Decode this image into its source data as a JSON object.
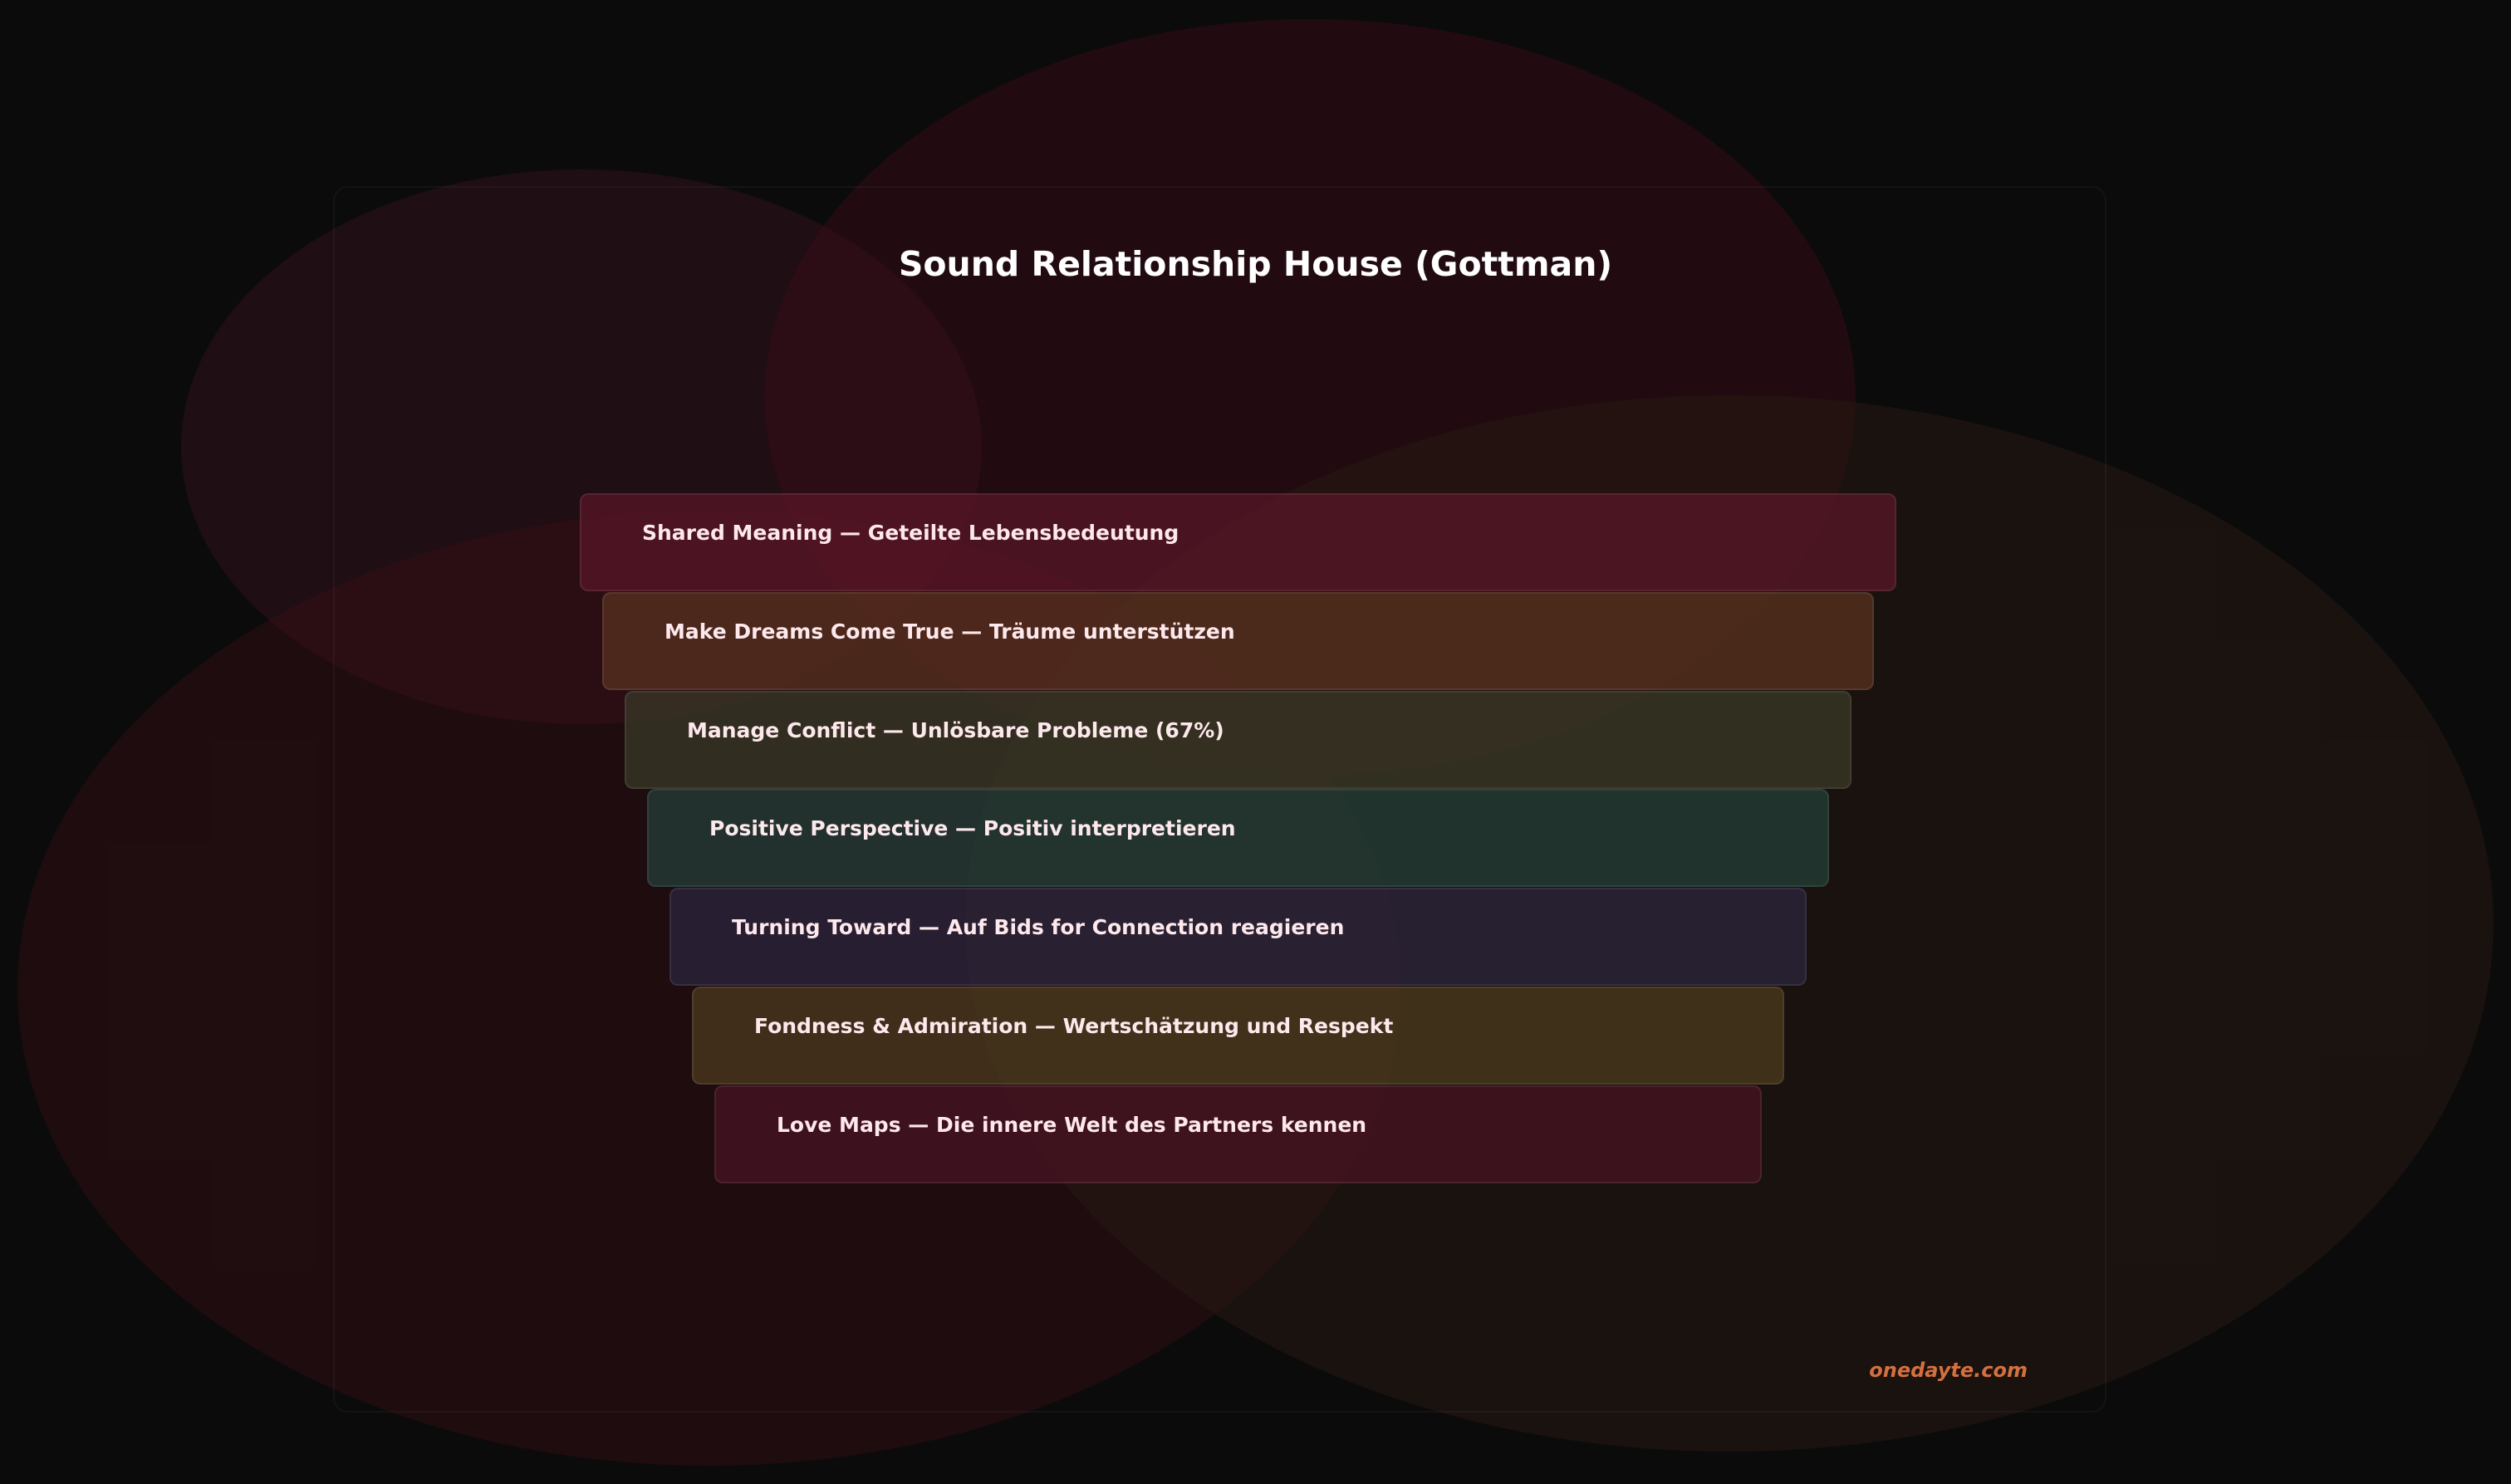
{
  "title": "Sound Relationship House (Gottman)",
  "levels": [
    {
      "label": "Shared Meaning — Geteilte Lebensbedeutung",
      "color": "#5a1628"
    },
    {
      "label": "Make Dreams Come True — Träume unterstützen",
      "color": "#5a3220"
    },
    {
      "label": "Manage Conflict — Unlösbare Probleme (67%)",
      "color": "#3a3a28"
    },
    {
      "label": "Positive Perspective — Positiv interpretieren",
      "color": "#24403a"
    },
    {
      "label": "Turning Toward — Auf Bids for Connection reagieren",
      "color": "#2c2640"
    },
    {
      "label": "Fondness & Admiration — Wertschätzung und Respekt",
      "color": "#4e3c1e"
    },
    {
      "label": "Love Maps — Die innere Welt des Partners kennen",
      "color": "#4a1424"
    }
  ],
  "watermark": "onedayte.com",
  "watermark_color": "#d4703f"
}
